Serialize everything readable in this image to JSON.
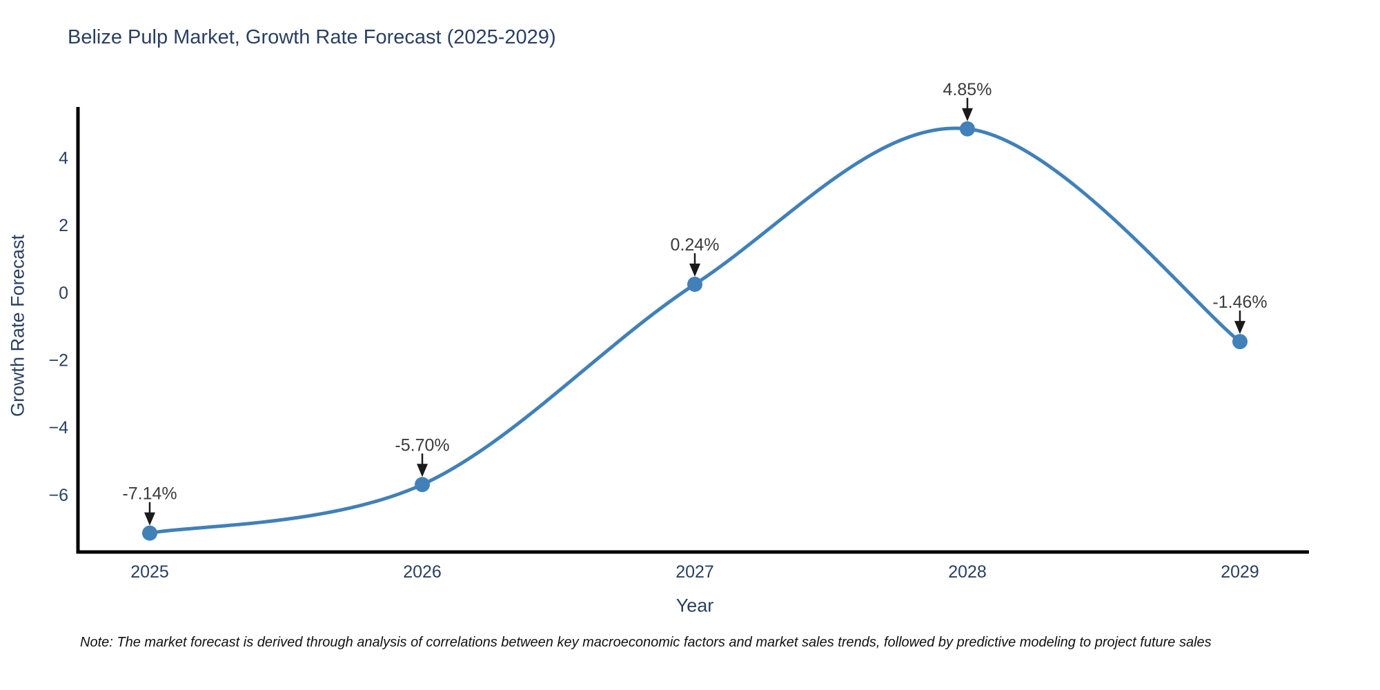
{
  "title": "Belize Pulp Market, Growth Rate Forecast (2025-2029)",
  "note": "Note: The market forecast is derived through analysis of correlations between key macroeconomic factors and market sales trends, followed by predictive modeling to project future sales",
  "colors": {
    "line": "#4180b8",
    "marker": "#4180b8",
    "title_text": "#2a3f5f",
    "tick_text": "#2a3f5f",
    "axis_title_text": "#2a3f5f",
    "annotation_text": "#3b3b3b",
    "arrow": "#1a1a1a",
    "axis_line": "#000000",
    "background": "#ffffff"
  },
  "chart_data": {
    "type": "line",
    "line_shape": "spline",
    "title": "Belize Pulp Market, Growth Rate Forecast (2025-2029)",
    "xlabel": "Year",
    "ylabel": "Growth Rate Forecast",
    "x": [
      2025,
      2026,
      2027,
      2028,
      2029
    ],
    "y": [
      -7.14,
      -5.7,
      0.24,
      4.85,
      -1.46
    ],
    "point_labels": [
      "-7.14%",
      "-5.70%",
      "0.24%",
      "4.85%",
      "-1.46%"
    ],
    "xtick_labels": [
      "2025",
      "2026",
      "2027",
      "2028",
      "2029"
    ],
    "ytick_values": [
      4,
      2,
      0,
      -2,
      -4,
      -6
    ],
    "ytick_labels": [
      "4",
      "2",
      "0",
      "−2",
      "−4",
      "−6"
    ],
    "ylim": [
      -7.7,
      5.5
    ],
    "grid": false,
    "legend": "none",
    "marker_size": 11,
    "line_width": 5
  }
}
